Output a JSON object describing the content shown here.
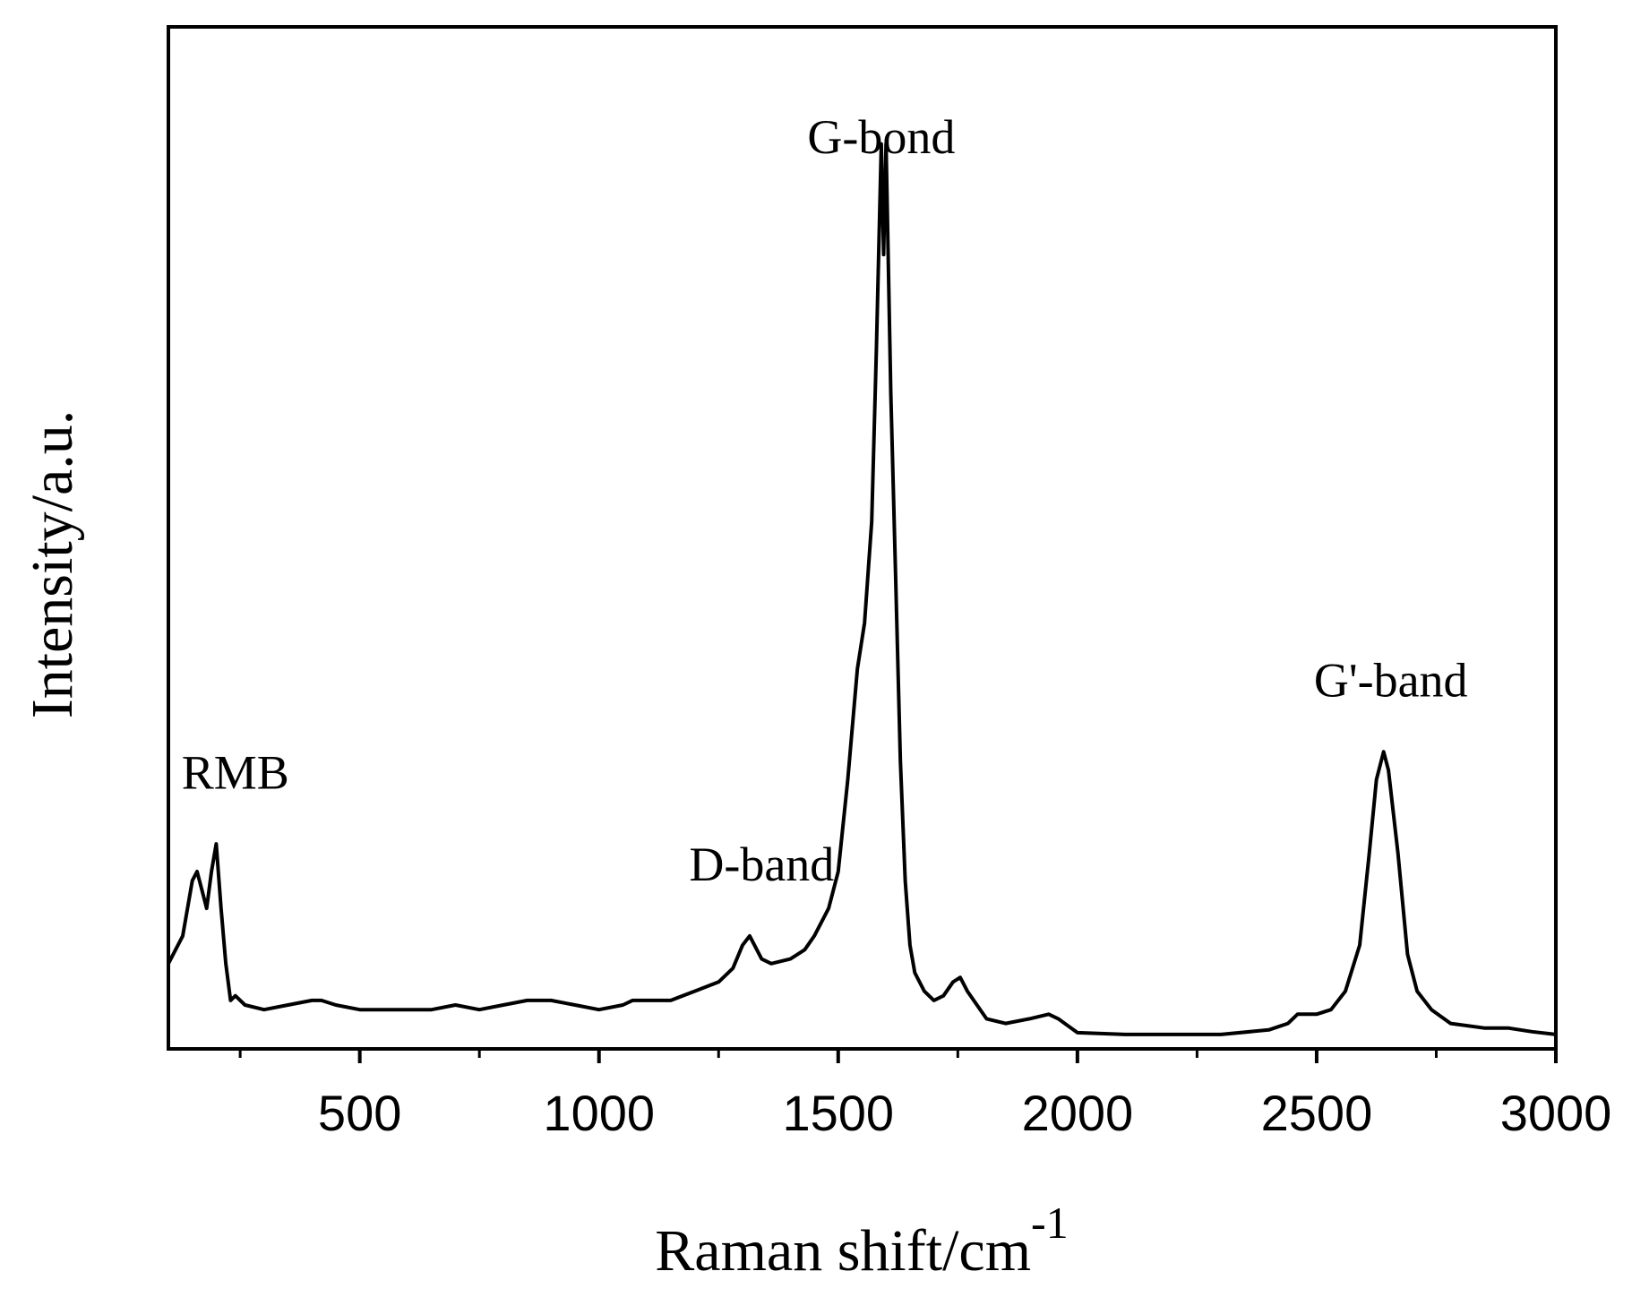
{
  "chart_data": {
    "type": "line",
    "title": "",
    "xlabel": "Raman shift/cm",
    "xlabel_superscript": "-1",
    "ylabel": "Intensity/a.u.",
    "xlim": [
      100,
      3000
    ],
    "ylim": [
      0,
      100
    ],
    "y_ticks_shown": false,
    "grid": false,
    "legend": "none",
    "x_ticks": [
      500,
      1000,
      1500,
      2000,
      2500,
      3000
    ],
    "x_tick_labels": [
      "500",
      "1000",
      "1500",
      "2000",
      "2500",
      "3000"
    ],
    "x_minor_ticks": [
      250,
      750,
      1250,
      1750,
      2250,
      2750
    ],
    "line_color": "#000000",
    "annotations": [
      {
        "text": "RMB",
        "x": 240,
        "y": 27
      },
      {
        "text": "D-band",
        "x": 1340,
        "y": 17
      },
      {
        "text": "G-bond",
        "x": 1590,
        "y": 96
      },
      {
        "text": "G'-band",
        "x": 2655,
        "y": 37
      }
    ],
    "series": [
      {
        "x": [
          100,
          130,
          150,
          160,
          170,
          180,
          190,
          200,
          210,
          220,
          230,
          240,
          260,
          300,
          350,
          400,
          420,
          450,
          500,
          550,
          600,
          650,
          700,
          750,
          800,
          850,
          870,
          900,
          950,
          1000,
          1050,
          1070,
          1100,
          1150,
          1200,
          1250,
          1280,
          1300,
          1315,
          1325,
          1340,
          1360,
          1400,
          1430,
          1450,
          1480,
          1500,
          1520,
          1540,
          1555,
          1570,
          1580,
          1590,
          1595,
          1600,
          1610,
          1620,
          1630,
          1640,
          1650,
          1660,
          1680,
          1700,
          1720,
          1740,
          1755,
          1770,
          1790,
          1810,
          1850,
          1900,
          1940,
          1960,
          2000,
          2100,
          2200,
          2300,
          2400,
          2440,
          2460,
          2500,
          2530,
          2560,
          2590,
          2610,
          2625,
          2640,
          2650,
          2670,
          2690,
          2710,
          2740,
          2780,
          2850,
          2900,
          2950,
          3000
        ],
        "y": [
          8,
          11,
          17,
          18,
          16,
          14,
          18,
          21,
          14,
          8,
          4,
          4.5,
          3.5,
          3,
          3.5,
          4,
          4,
          3.5,
          3,
          3,
          3,
          3,
          3.5,
          3,
          3.5,
          4,
          4,
          4,
          3.5,
          3,
          3.5,
          4,
          4,
          4,
          5,
          6,
          7.5,
          10,
          11,
          10,
          8.5,
          8,
          8.5,
          9.5,
          11,
          14,
          18,
          28,
          40,
          45,
          56,
          75,
          97,
          85,
          97,
          70,
          50,
          30,
          17,
          10,
          7,
          5,
          4,
          4.5,
          6,
          6.5,
          5,
          3.5,
          2,
          1.5,
          2,
          2.5,
          2,
          0.5,
          0.3,
          0.3,
          0.3,
          0.8,
          1.5,
          2.5,
          2.5,
          3,
          5,
          10,
          20,
          28,
          31,
          29,
          20,
          9,
          5,
          3,
          1.5,
          1,
          1,
          0.6,
          0.3
        ]
      }
    ]
  }
}
